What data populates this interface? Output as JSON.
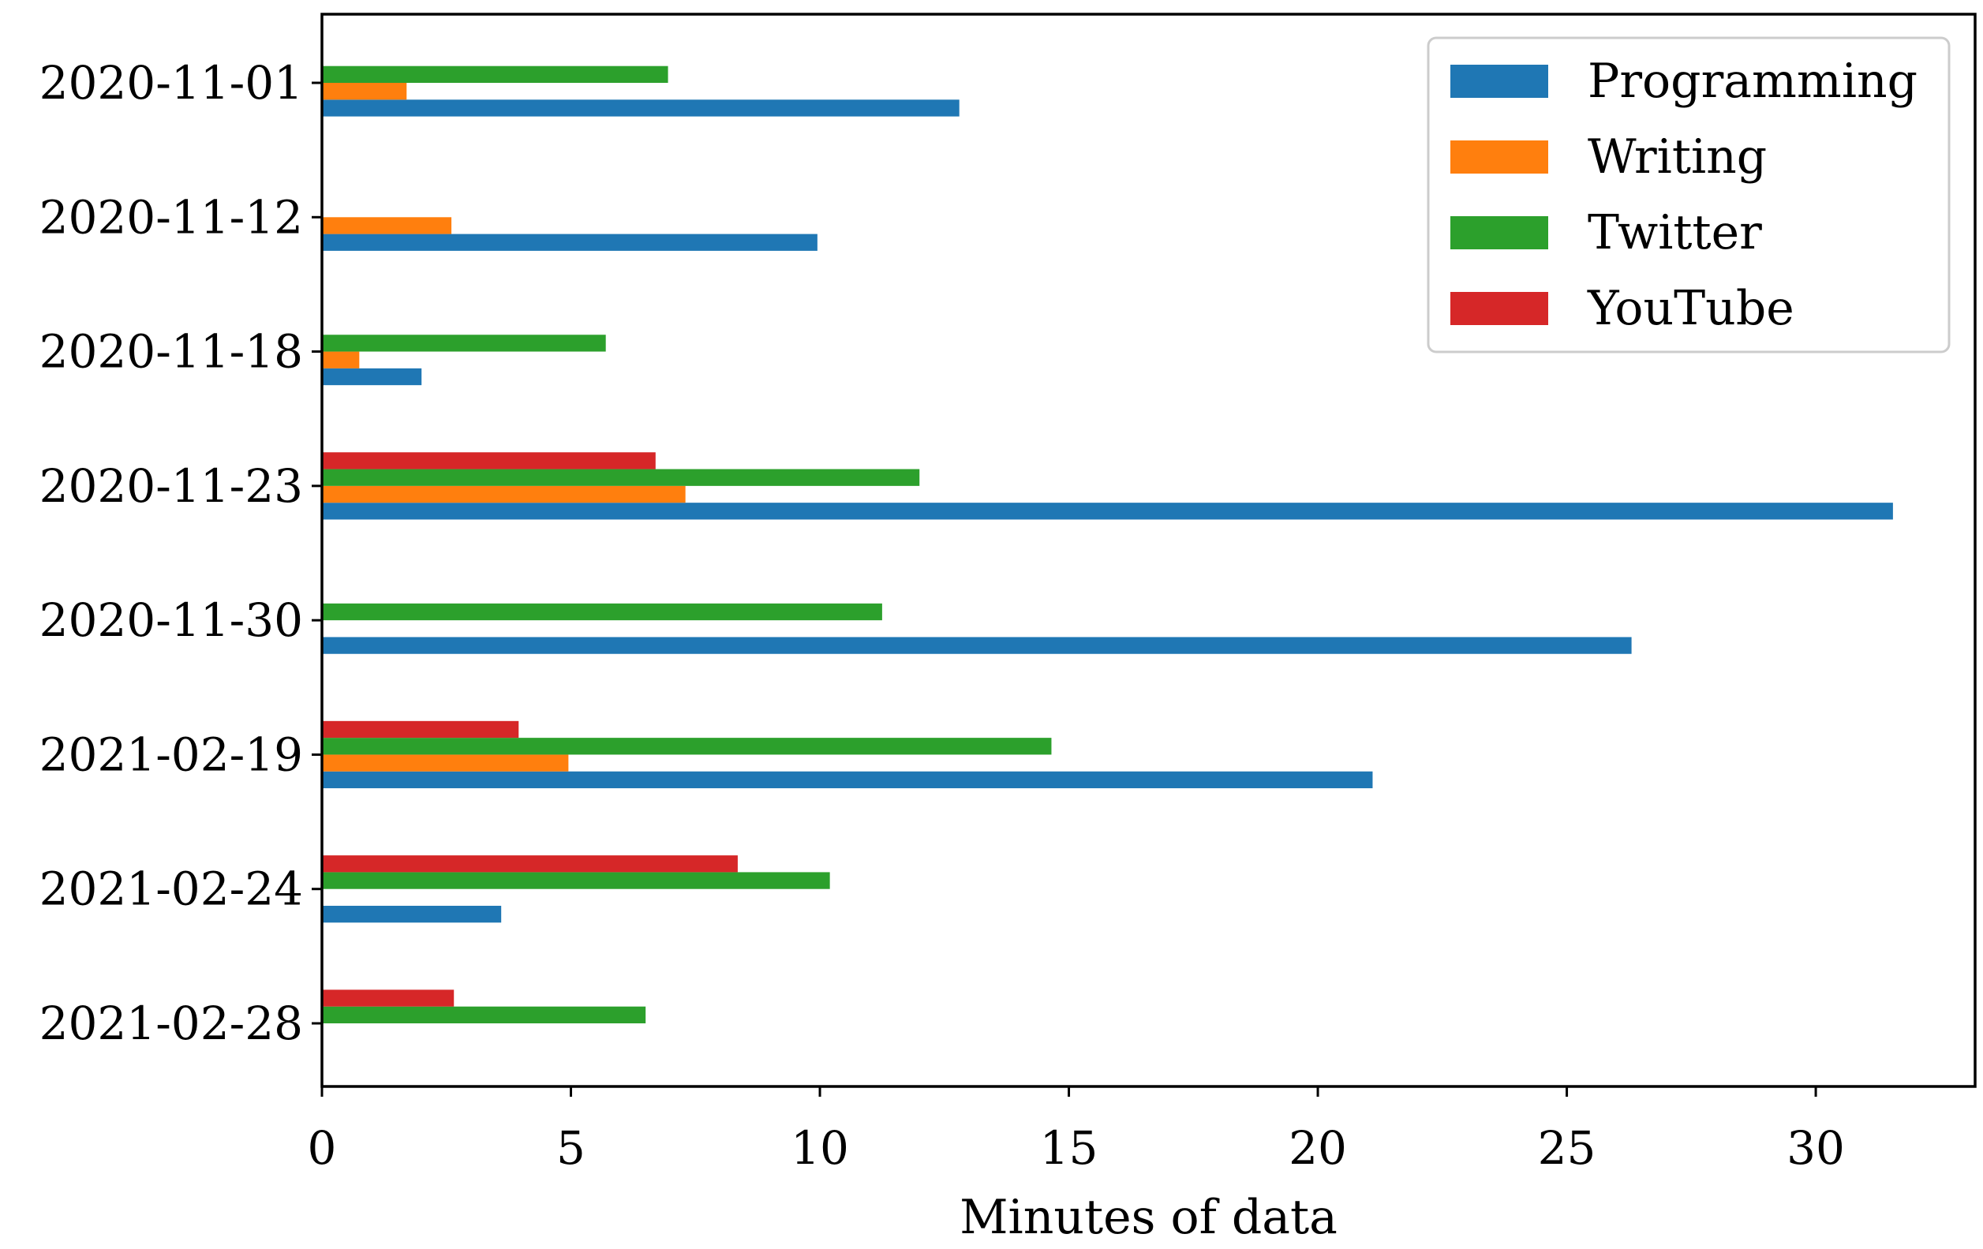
{
  "chart_data": {
    "type": "bar",
    "orientation": "horizontal",
    "categories": [
      "2020-11-01",
      "2020-11-12",
      "2020-11-18",
      "2020-11-23",
      "2020-11-30",
      "2021-02-19",
      "2021-02-24",
      "2021-02-28"
    ],
    "series": [
      {
        "name": "Programming",
        "color": "#1f77b4",
        "values": [
          12.8,
          9.95,
          2.0,
          31.55,
          26.3,
          21.1,
          3.6,
          0
        ]
      },
      {
        "name": "Writing",
        "color": "#ff7f0e",
        "values": [
          1.7,
          2.6,
          0.75,
          7.3,
          0,
          4.95,
          0,
          0
        ]
      },
      {
        "name": "Twitter",
        "color": "#2ca02c",
        "values": [
          6.95,
          0,
          5.7,
          12.0,
          11.25,
          14.65,
          10.2,
          6.5
        ]
      },
      {
        "name": "YouTube",
        "color": "#d62728",
        "values": [
          0,
          0,
          0,
          6.7,
          0,
          3.95,
          8.35,
          2.65
        ]
      }
    ],
    "title": "",
    "xlabel": "Minutes of data",
    "ylabel": "",
    "xlim": [
      0,
      33.2
    ],
    "xticks": [
      "0",
      "5",
      "10",
      "15",
      "20",
      "25",
      "30"
    ],
    "grid": false,
    "legend_position": "top-right"
  }
}
